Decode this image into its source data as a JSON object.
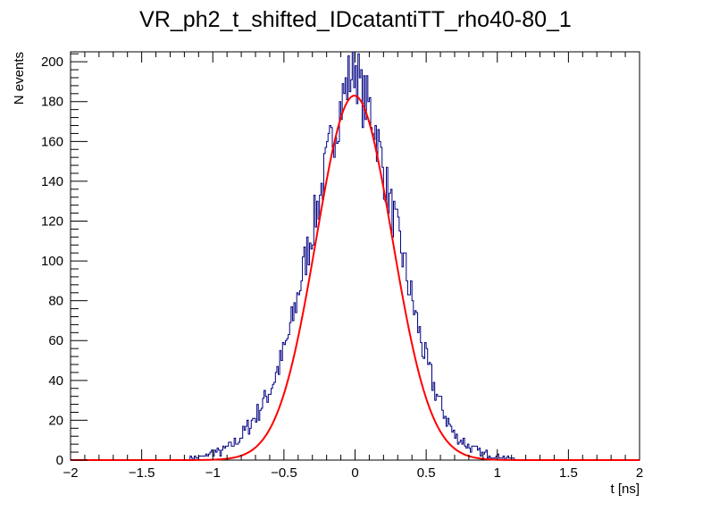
{
  "chart_data": {
    "type": "line",
    "title": "VR_ph2_t_shifted_IDcatantiTT_rho40-80_1",
    "xlabel": "t [ns]",
    "ylabel": "N events",
    "xlim": [
      -2,
      2
    ],
    "ylim": [
      0,
      205
    ],
    "xticks": [
      -2,
      -1.5,
      -1,
      -0.5,
      0,
      0.5,
      1,
      1.5,
      2
    ],
    "xtick_labels": [
      "−2",
      "−1.5",
      "−1",
      "−0.5",
      "0",
      "0.5",
      "1",
      "1.5",
      "2"
    ],
    "yticks": [
      0,
      20,
      40,
      60,
      80,
      100,
      120,
      140,
      160,
      180,
      200
    ],
    "ytick_labels": [
      "0",
      "20",
      "40",
      "60",
      "80",
      "100",
      "120",
      "140",
      "160",
      "180",
      "200"
    ],
    "grid": false,
    "legend": "none",
    "series": [
      {
        "kind": "histogram",
        "color": "#000080",
        "bin_width": 0.01,
        "x": [
          -1.2,
          -1.15,
          -1.1,
          -1.05,
          -1.0,
          -0.95,
          -0.9,
          -0.85,
          -0.8,
          -0.75,
          -0.7,
          -0.65,
          -0.6,
          -0.55,
          -0.5,
          -0.45,
          -0.4,
          -0.35,
          -0.3,
          -0.25,
          -0.2,
          -0.15,
          -0.1,
          -0.05,
          0.0,
          0.05,
          0.1,
          0.15,
          0.2,
          0.25,
          0.3,
          0.35,
          0.4,
          0.45,
          0.5,
          0.55,
          0.6,
          0.65,
          0.7,
          0.75,
          0.8,
          0.85,
          0.9,
          0.95,
          1.0,
          1.05,
          1.1,
          1.15,
          1.2
        ],
        "y": [
          0,
          1,
          1,
          2,
          4,
          4,
          6,
          8,
          12,
          17,
          22,
          28,
          35,
          44,
          54,
          67,
          84,
          100,
          116,
          132,
          148,
          165,
          178,
          190,
          200,
          182,
          178,
          165,
          145,
          128,
          113,
          98,
          80,
          65,
          50,
          38,
          28,
          20,
          12,
          10,
          7,
          5,
          3,
          3,
          2,
          1,
          1,
          0,
          0
        ]
      },
      {
        "kind": "gaussian-fit",
        "color": "#ff0000",
        "amplitude": 183,
        "mean": -0.005,
        "sigma": 0.268
      }
    ]
  }
}
